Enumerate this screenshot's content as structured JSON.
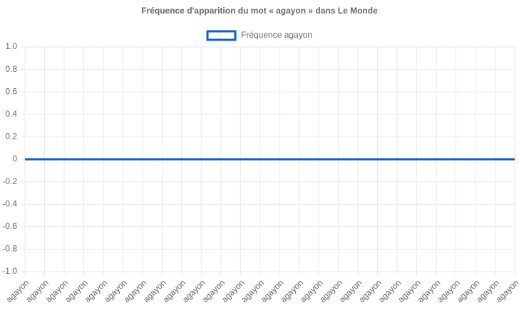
{
  "chart_data": {
    "type": "line",
    "title": "Fréquence d'apparition du mot « agayon » dans Le Monde",
    "categories": [
      "agayon",
      "agayon",
      "agayon",
      "agayon",
      "agayon",
      "agayon",
      "agayon",
      "agayon",
      "agayon",
      "agayon",
      "agayon",
      "agayon",
      "agayon",
      "agayon",
      "agayon",
      "agayon",
      "agayon",
      "agayon",
      "agayon",
      "agayon",
      "agayon",
      "agayon",
      "agayon",
      "agayon",
      "agayon",
      "agayon"
    ],
    "series": [
      {
        "name": "Fréquence agayon",
        "color": "#0b5ed7",
        "values": [
          0,
          0,
          0,
          0,
          0,
          0,
          0,
          0,
          0,
          0,
          0,
          0,
          0,
          0,
          0,
          0,
          0,
          0,
          0,
          0,
          0,
          0,
          0,
          0,
          0,
          0
        ]
      }
    ],
    "ylim": [
      -1,
      1
    ],
    "yticks": [
      {
        "value": 1,
        "label": "1.0"
      },
      0.8,
      0.6,
      0.4,
      0.2,
      0,
      -0.2,
      -0.4,
      -0.6,
      -0.8,
      {
        "value": -1,
        "label": "-1.0"
      }
    ],
    "grid": true,
    "legend": "top"
  }
}
